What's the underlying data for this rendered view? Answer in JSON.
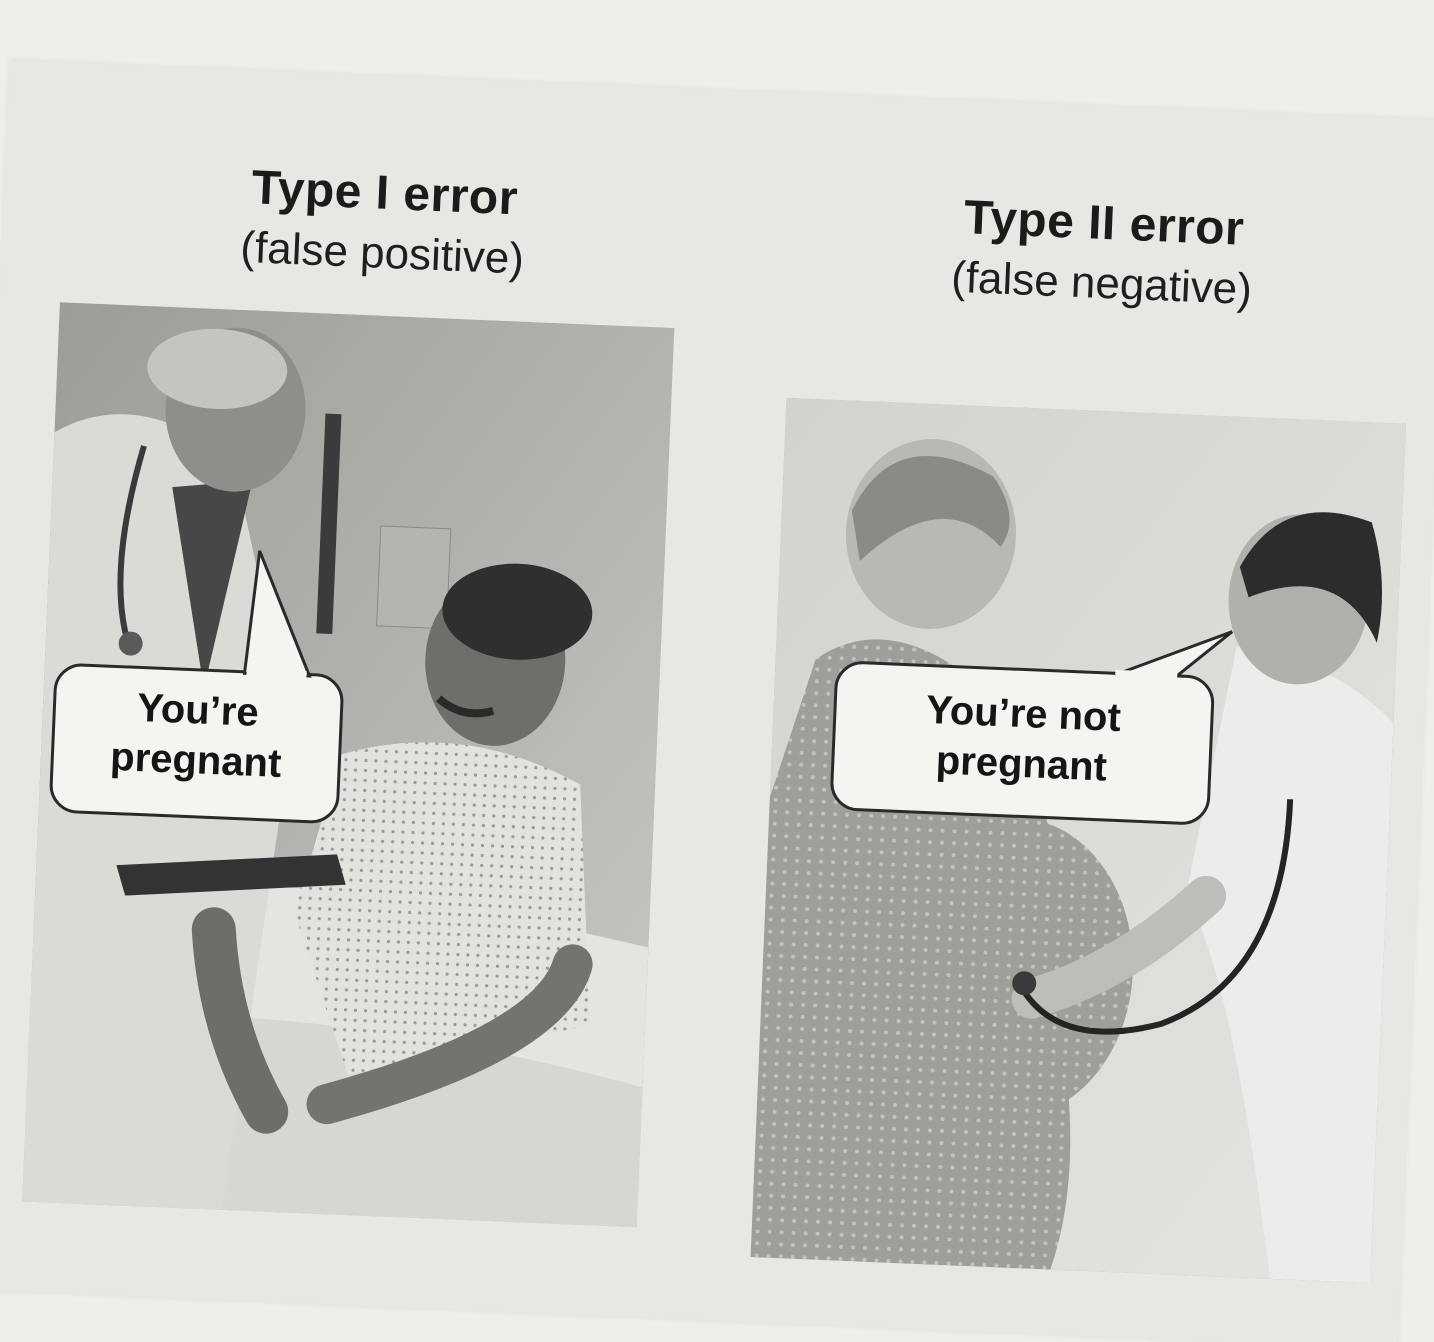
{
  "panels": [
    {
      "title": "Type I error",
      "subtitle": "(false positive)",
      "speech": [
        "You’re",
        "pregnant"
      ]
    },
    {
      "title": "Type II error",
      "subtitle": "(false negative)",
      "speech": [
        "You’re not",
        "pregnant"
      ]
    }
  ]
}
